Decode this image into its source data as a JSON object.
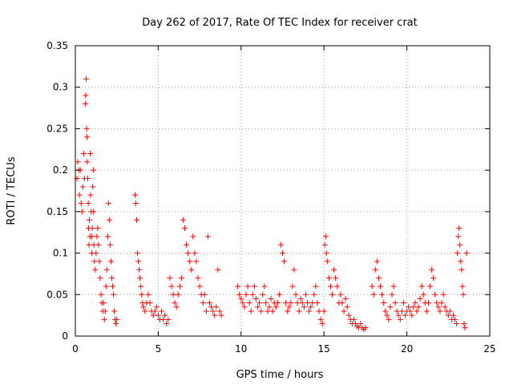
{
  "chart_data": {
    "type": "scatter",
    "title": "Day 262 of 2017, Rate Of TEC Index for receiver crat",
    "xlabel": "GPS time / hours",
    "ylabel": "ROTI / TECUs",
    "xlim": [
      0,
      25
    ],
    "ylim": [
      0,
      0.35
    ],
    "xticks": [
      0,
      5,
      10,
      15,
      20,
      25
    ],
    "xtick_labels": [
      "0",
      "5",
      "10",
      "15",
      "20",
      "25"
    ],
    "yticks": [
      0,
      0.05,
      0.1,
      0.15,
      0.2,
      0.25,
      0.3,
      0.35
    ],
    "ytick_labels": [
      "0",
      "0.05",
      "0.1",
      "0.15",
      "0.2",
      "0.25",
      "0.3",
      "0.35"
    ],
    "grid": true,
    "marker": "plus",
    "color": "#ff0000",
    "points": [
      [
        0.1,
        0.19
      ],
      [
        0.15,
        0.21
      ],
      [
        0.2,
        0.2
      ],
      [
        0.25,
        0.17
      ],
      [
        0.3,
        0.2
      ],
      [
        0.35,
        0.16
      ],
      [
        0.4,
        0.15
      ],
      [
        0.45,
        0.18
      ],
      [
        0.5,
        0.22
      ],
      [
        0.55,
        0.19
      ],
      [
        0.6,
        0.28
      ],
      [
        0.62,
        0.29
      ],
      [
        0.65,
        0.31
      ],
      [
        0.68,
        0.25
      ],
      [
        0.7,
        0.24
      ],
      [
        0.72,
        0.21
      ],
      [
        0.75,
        0.19
      ],
      [
        0.78,
        0.16
      ],
      [
        0.8,
        0.13
      ],
      [
        0.82,
        0.11
      ],
      [
        0.85,
        0.14
      ],
      [
        0.88,
        0.12
      ],
      [
        0.9,
        0.22
      ],
      [
        0.92,
        0.17
      ],
      [
        0.95,
        0.15
      ],
      [
        0.98,
        0.12
      ],
      [
        1.0,
        0.1
      ],
      [
        1.02,
        0.13
      ],
      [
        1.05,
        0.18
      ],
      [
        1.08,
        0.2
      ],
      [
        1.1,
        0.15
      ],
      [
        1.12,
        0.11
      ],
      [
        1.15,
        0.09
      ],
      [
        1.2,
        0.08
      ],
      [
        1.25,
        0.1
      ],
      [
        1.3,
        0.12
      ],
      [
        1.35,
        0.13
      ],
      [
        1.4,
        0.11
      ],
      [
        1.45,
        0.09
      ],
      [
        1.5,
        0.07
      ],
      [
        1.55,
        0.05
      ],
      [
        1.6,
        0.04
      ],
      [
        1.65,
        0.03
      ],
      [
        1.7,
        0.04
      ],
      [
        1.75,
        0.02
      ],
      [
        1.8,
        0.03
      ],
      [
        1.85,
        0.06
      ],
      [
        1.9,
        0.08
      ],
      [
        1.95,
        0.12
      ],
      [
        2.0,
        0.16
      ],
      [
        2.05,
        0.14
      ],
      [
        2.1,
        0.11
      ],
      [
        2.15,
        0.09
      ],
      [
        2.2,
        0.07
      ],
      [
        2.25,
        0.06
      ],
      [
        2.3,
        0.05
      ],
      [
        2.35,
        0.03
      ],
      [
        2.4,
        0.02
      ],
      [
        2.45,
        0.015
      ],
      [
        2.5,
        0.02
      ],
      [
        3.6,
        0.17
      ],
      [
        3.65,
        0.16
      ],
      [
        3.7,
        0.14
      ],
      [
        3.75,
        0.1
      ],
      [
        3.8,
        0.09
      ],
      [
        3.85,
        0.08
      ],
      [
        3.9,
        0.07
      ],
      [
        3.95,
        0.06
      ],
      [
        4.0,
        0.05
      ],
      [
        4.05,
        0.04
      ],
      [
        4.1,
        0.035
      ],
      [
        4.2,
        0.03
      ],
      [
        4.3,
        0.04
      ],
      [
        4.4,
        0.05
      ],
      [
        4.5,
        0.04
      ],
      [
        4.6,
        0.03
      ],
      [
        4.7,
        0.025
      ],
      [
        4.8,
        0.03
      ],
      [
        4.9,
        0.035
      ],
      [
        5.0,
        0.025
      ],
      [
        5.1,
        0.02
      ],
      [
        5.2,
        0.03
      ],
      [
        5.3,
        0.02
      ],
      [
        5.4,
        0.025
      ],
      [
        5.5,
        0.015
      ],
      [
        5.6,
        0.02
      ],
      [
        5.7,
        0.07
      ],
      [
        5.8,
        0.06
      ],
      [
        5.9,
        0.05
      ],
      [
        6.0,
        0.04
      ],
      [
        6.1,
        0.035
      ],
      [
        6.2,
        0.05
      ],
      [
        6.3,
        0.06
      ],
      [
        6.4,
        0.07
      ],
      [
        6.5,
        0.14
      ],
      [
        6.6,
        0.13
      ],
      [
        6.7,
        0.11
      ],
      [
        6.8,
        0.1
      ],
      [
        6.9,
        0.09
      ],
      [
        7.0,
        0.08
      ],
      [
        7.1,
        0.12
      ],
      [
        7.2,
        0.1
      ],
      [
        7.3,
        0.09
      ],
      [
        7.4,
        0.07
      ],
      [
        7.5,
        0.06
      ],
      [
        7.6,
        0.05
      ],
      [
        7.7,
        0.04
      ],
      [
        7.8,
        0.05
      ],
      [
        7.9,
        0.03
      ],
      [
        8.0,
        0.12
      ],
      [
        8.1,
        0.04
      ],
      [
        8.2,
        0.035
      ],
      [
        8.3,
        0.03
      ],
      [
        8.4,
        0.025
      ],
      [
        8.5,
        0.035
      ],
      [
        8.6,
        0.08
      ],
      [
        8.7,
        0.03
      ],
      [
        8.8,
        0.025
      ],
      [
        9.8,
        0.06
      ],
      [
        9.9,
        0.05
      ],
      [
        10.0,
        0.045
      ],
      [
        10.1,
        0.04
      ],
      [
        10.2,
        0.035
      ],
      [
        10.3,
        0.05
      ],
      [
        10.4,
        0.06
      ],
      [
        10.5,
        0.04
      ],
      [
        10.6,
        0.03
      ],
      [
        10.7,
        0.05
      ],
      [
        10.8,
        0.06
      ],
      [
        10.9,
        0.045
      ],
      [
        11.0,
        0.035
      ],
      [
        11.1,
        0.04
      ],
      [
        11.2,
        0.03
      ],
      [
        11.3,
        0.05
      ],
      [
        11.4,
        0.06
      ],
      [
        11.5,
        0.04
      ],
      [
        11.6,
        0.03
      ],
      [
        11.7,
        0.035
      ],
      [
        11.8,
        0.045
      ],
      [
        11.9,
        0.03
      ],
      [
        12.0,
        0.04
      ],
      [
        12.1,
        0.035
      ],
      [
        12.2,
        0.04
      ],
      [
        12.3,
        0.05
      ],
      [
        12.4,
        0.11
      ],
      [
        12.5,
        0.1
      ],
      [
        12.6,
        0.09
      ],
      [
        12.7,
        0.04
      ],
      [
        12.8,
        0.03
      ],
      [
        12.9,
        0.035
      ],
      [
        13.0,
        0.04
      ],
      [
        13.1,
        0.06
      ],
      [
        13.2,
        0.08
      ],
      [
        13.3,
        0.05
      ],
      [
        13.4,
        0.04
      ],
      [
        13.5,
        0.03
      ],
      [
        13.6,
        0.045
      ],
      [
        13.7,
        0.04
      ],
      [
        13.8,
        0.035
      ],
      [
        13.9,
        0.05
      ],
      [
        14.0,
        0.04
      ],
      [
        14.1,
        0.03
      ],
      [
        14.2,
        0.035
      ],
      [
        14.3,
        0.04
      ],
      [
        14.4,
        0.05
      ],
      [
        14.5,
        0.06
      ],
      [
        14.6,
        0.04
      ],
      [
        14.7,
        0.03
      ],
      [
        14.8,
        0.02
      ],
      [
        14.9,
        0.015
      ],
      [
        15.0,
        0.03
      ],
      [
        15.05,
        0.11
      ],
      [
        15.1,
        0.12
      ],
      [
        15.15,
        0.1
      ],
      [
        15.2,
        0.09
      ],
      [
        15.3,
        0.07
      ],
      [
        15.4,
        0.06
      ],
      [
        15.5,
        0.05
      ],
      [
        15.6,
        0.08
      ],
      [
        15.7,
        0.07
      ],
      [
        15.8,
        0.06
      ],
      [
        15.9,
        0.04
      ],
      [
        16.0,
        0.05
      ],
      [
        16.1,
        0.04
      ],
      [
        16.2,
        0.03
      ],
      [
        16.3,
        0.045
      ],
      [
        16.4,
        0.035
      ],
      [
        16.5,
        0.025
      ],
      [
        16.6,
        0.02
      ],
      [
        16.7,
        0.015
      ],
      [
        16.8,
        0.02
      ],
      [
        16.9,
        0.015
      ],
      [
        17.0,
        0.012
      ],
      [
        17.1,
        0.01
      ],
      [
        17.2,
        0.015
      ],
      [
        17.3,
        0.01
      ],
      [
        17.4,
        0.008
      ],
      [
        17.5,
        0.01
      ],
      [
        17.9,
        0.06
      ],
      [
        18.0,
        0.05
      ],
      [
        18.1,
        0.08
      ],
      [
        18.2,
        0.09
      ],
      [
        18.3,
        0.07
      ],
      [
        18.4,
        0.06
      ],
      [
        18.5,
        0.05
      ],
      [
        18.6,
        0.04
      ],
      [
        18.7,
        0.03
      ],
      [
        18.8,
        0.025
      ],
      [
        18.9,
        0.02
      ],
      [
        19.0,
        0.035
      ],
      [
        19.1,
        0.05
      ],
      [
        19.2,
        0.06
      ],
      [
        19.3,
        0.04
      ],
      [
        19.4,
        0.03
      ],
      [
        19.5,
        0.025
      ],
      [
        19.6,
        0.02
      ],
      [
        19.7,
        0.03
      ],
      [
        19.8,
        0.04
      ],
      [
        19.9,
        0.025
      ],
      [
        20.0,
        0.03
      ],
      [
        20.1,
        0.035
      ],
      [
        20.2,
        0.03
      ],
      [
        20.3,
        0.025
      ],
      [
        20.4,
        0.035
      ],
      [
        20.5,
        0.04
      ],
      [
        20.6,
        0.03
      ],
      [
        20.7,
        0.035
      ],
      [
        20.8,
        0.045
      ],
      [
        20.9,
        0.06
      ],
      [
        21.0,
        0.05
      ],
      [
        21.1,
        0.04
      ],
      [
        21.2,
        0.03
      ],
      [
        21.3,
        0.04
      ],
      [
        21.4,
        0.06
      ],
      [
        21.5,
        0.08
      ],
      [
        21.6,
        0.07
      ],
      [
        21.7,
        0.05
      ],
      [
        21.8,
        0.04
      ],
      [
        21.9,
        0.035
      ],
      [
        22.0,
        0.03
      ],
      [
        22.1,
        0.04
      ],
      [
        22.2,
        0.05
      ],
      [
        22.3,
        0.035
      ],
      [
        22.4,
        0.03
      ],
      [
        22.5,
        0.025
      ],
      [
        22.6,
        0.03
      ],
      [
        22.7,
        0.02
      ],
      [
        22.8,
        0.025
      ],
      [
        22.9,
        0.02
      ],
      [
        23.0,
        0.015
      ],
      [
        23.05,
        0.1
      ],
      [
        23.1,
        0.12
      ],
      [
        23.15,
        0.13
      ],
      [
        23.2,
        0.11
      ],
      [
        23.25,
        0.09
      ],
      [
        23.3,
        0.08
      ],
      [
        23.35,
        0.06
      ],
      [
        23.4,
        0.05
      ],
      [
        23.45,
        0.015
      ],
      [
        23.5,
        0.01
      ],
      [
        23.6,
        0.1
      ]
    ]
  }
}
